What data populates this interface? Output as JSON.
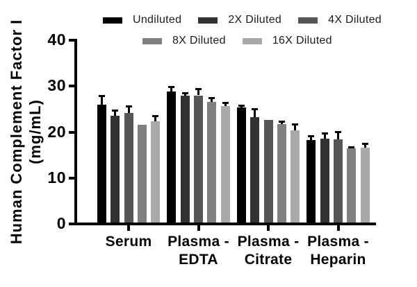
{
  "chart_data": {
    "type": "bar",
    "grouped": true,
    "title": "",
    "ylabel_line1": "Human Complement Factor I",
    "ylabel_line2": "(mg/mL)",
    "xlabel": "",
    "ylim": [
      0,
      40
    ],
    "yticks": [
      0,
      10,
      20,
      30,
      40
    ],
    "grid": false,
    "legend_position": "top",
    "error_bars": "upper SD with cap, black",
    "categories": [
      "Serum",
      "Plasma - EDTA",
      "Plasma - Citrate",
      "Plasma - Heparin"
    ],
    "category_label_lines": [
      [
        "Serum"
      ],
      [
        "Plasma -",
        "EDTA"
      ],
      [
        "Plasma -",
        "Citrate"
      ],
      [
        "Plasma -",
        "Heparin"
      ]
    ],
    "series": [
      {
        "name": "Undiluted",
        "color": "#000000",
        "values": [
          26.0,
          28.8,
          25.4,
          18.3
        ],
        "errors": [
          2.0,
          1.1,
          0.4,
          0.8
        ]
      },
      {
        "name": "2X Diluted",
        "color": "#323234",
        "values": [
          23.6,
          27.9,
          23.2,
          18.6
        ],
        "errors": [
          1.2,
          0.7,
          1.9,
          1.2
        ]
      },
      {
        "name": "4X Diluted",
        "color": "#565658",
        "values": [
          24.2,
          28.0,
          22.6,
          18.4
        ],
        "errors": [
          1.5,
          1.4,
          0.0,
          1.7
        ]
      },
      {
        "name": "8X Diluted",
        "color": "#808083",
        "values": [
          21.6,
          26.6,
          21.7,
          16.4
        ],
        "errors": [
          0.0,
          0.8,
          0.7,
          0.4
        ]
      },
      {
        "name": "16X Diluted",
        "color": "#a9a9ac",
        "values": [
          22.3,
          25.6,
          20.4,
          16.6
        ],
        "errors": [
          1.2,
          0.8,
          1.4,
          0.9
        ]
      }
    ],
    "legend_rows": [
      [
        0,
        1,
        2
      ],
      [
        3,
        4
      ]
    ]
  },
  "colors": {
    "axis": "#000000",
    "background": "#ffffff",
    "error_bar": "#000000"
  }
}
